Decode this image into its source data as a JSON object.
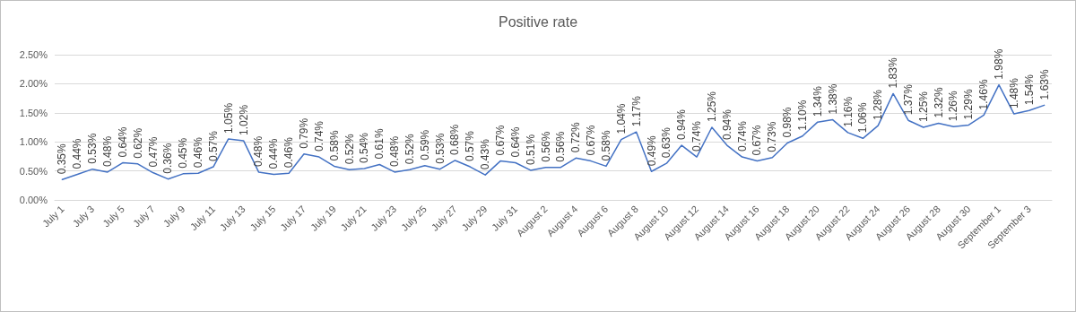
{
  "chart_data": {
    "type": "line",
    "title": "Positive rate",
    "categories": [
      "July 1",
      null,
      "July 3",
      null,
      "July 5",
      null,
      "July 7",
      null,
      "July 9",
      null,
      "July 11",
      null,
      "July 13",
      null,
      "July 15",
      null,
      "July 17",
      null,
      "July 19",
      null,
      "July 21",
      null,
      "July 23",
      null,
      "July 25",
      null,
      "July 27",
      null,
      "July 29",
      null,
      "July 31",
      null,
      "August 2",
      null,
      "August 4",
      null,
      "August 6",
      null,
      "August 8",
      null,
      "August 10",
      null,
      "August 12",
      null,
      "August 14",
      null,
      "August 16",
      null,
      "August 18",
      null,
      "August 20",
      null,
      "August 22",
      null,
      "August 24",
      null,
      "August 26",
      null,
      "August 28",
      null,
      "August 30",
      null,
      "September 1",
      null,
      "September 3",
      null
    ],
    "series": [
      {
        "color": "#4472c4",
        "values": [
          0.35,
          0.44,
          0.53,
          0.48,
          0.64,
          0.62,
          0.47,
          0.36,
          0.45,
          0.46,
          0.57,
          1.05,
          1.02,
          0.48,
          0.44,
          0.46,
          0.79,
          0.74,
          0.58,
          0.52,
          0.54,
          0.61,
          0.48,
          0.52,
          0.59,
          0.53,
          0.68,
          0.57,
          0.43,
          0.67,
          0.64,
          0.51,
          0.56,
          0.56,
          0.72,
          0.67,
          0.58,
          1.04,
          1.17,
          0.49,
          0.63,
          0.94,
          0.74,
          1.25,
          0.94,
          0.74,
          0.67,
          0.73,
          0.98,
          1.1,
          1.34,
          1.38,
          1.16,
          1.06,
          1.28,
          1.83,
          1.37,
          1.25,
          1.32,
          1.26,
          1.29,
          1.46,
          1.98,
          1.48,
          1.54,
          1.63
        ],
        "value_labels": [
          "0.35%",
          "0.44%",
          "0.53%",
          "0.48%",
          "0.64%",
          "0.62%",
          "0.47%",
          "0.36%",
          "0.45%",
          "0.46%",
          "0.57%",
          "1.05%",
          "1.02%",
          "0.48%",
          "0.44%",
          "0.46%",
          "0.79%",
          "0.74%",
          "0.58%",
          "0.52%",
          "0.54%",
          "0.61%",
          "0.48%",
          "0.52%",
          "0.59%",
          "0.53%",
          "0.68%",
          "0.57%",
          "0.43%",
          "0.67%",
          "0.64%",
          "0.51%",
          "0.56%",
          "0.56%",
          "0.72%",
          "0.67%",
          "0.58%",
          "1.04%",
          "1.17%",
          "0.49%",
          "0.63%",
          "0.94%",
          "0.74%",
          "1.25%",
          "0.94%",
          "0.74%",
          "0.67%",
          "0.73%",
          "0.98%",
          "1.10%",
          "1.34%",
          "1.38%",
          "1.16%",
          "1.06%",
          "1.28%",
          "1.83%",
          "1.37%",
          "1.25%",
          "1.32%",
          "1.26%",
          "1.29%",
          "1.46%",
          "1.98%",
          "1.48%",
          "1.54%",
          "1.63%"
        ]
      }
    ],
    "ylim": [
      0,
      2.5
    ],
    "yticks": [
      {
        "value": 0,
        "label": "0.00%"
      },
      {
        "value": 0.5,
        "label": "0.50%"
      },
      {
        "value": 1,
        "label": "1.00%"
      },
      {
        "value": 1.5,
        "label": "1.50%"
      },
      {
        "value": 2,
        "label": "2.00%"
      },
      {
        "value": 2.5,
        "label": "2.50%"
      }
    ],
    "grid": "y",
    "marker": "none",
    "line_style": "solid"
  }
}
